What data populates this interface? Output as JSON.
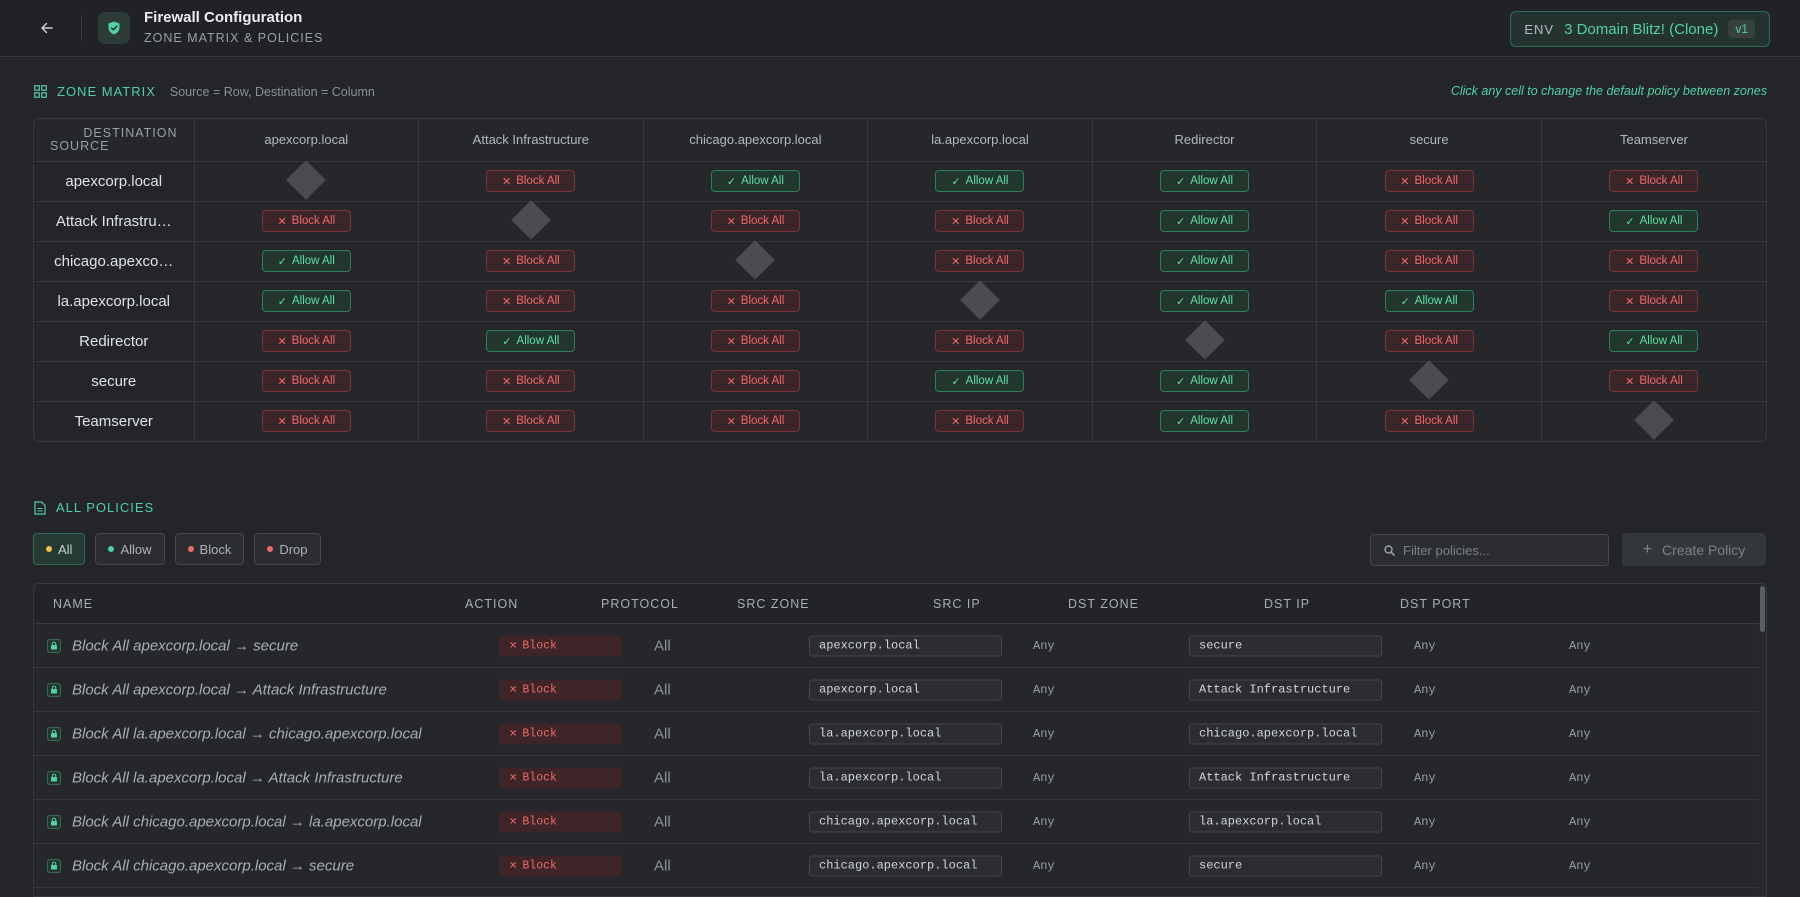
{
  "header": {
    "title": "Firewall Configuration",
    "subtitle": "ZONE MATRIX & POLICIES",
    "env_label": "ENV",
    "env_name": "3 Domain Blitz! (Clone)",
    "env_version": "v1"
  },
  "matrix_section": {
    "title": "ZONE MATRIX",
    "note": "Source = Row, Destination = Column",
    "hint": "Click any cell to change the default policy between zones",
    "corner_dest": "DESTINATION",
    "corner_src": "SOURCE",
    "columns": [
      "apexcorp.local",
      "Attack Infrastructure",
      "chicago.apexcorp.local",
      "la.apexcorp.local",
      "Redirector",
      "secure",
      "Teamserver"
    ],
    "block_label": "Block All",
    "allow_label": "Allow All",
    "rows": [
      {
        "label": "apexcorp.local",
        "cells": [
          "self",
          "block",
          "allow",
          "allow",
          "allow",
          "block",
          "block"
        ]
      },
      {
        "label": "Attack Infrastru…",
        "cells": [
          "block",
          "self",
          "block",
          "block",
          "allow",
          "block",
          "allow"
        ]
      },
      {
        "label": "chicago.apexco…",
        "cells": [
          "allow",
          "block",
          "self",
          "block",
          "allow",
          "block",
          "block"
        ]
      },
      {
        "label": "la.apexcorp.local",
        "cells": [
          "allow",
          "block",
          "block",
          "self",
          "allow",
          "allow",
          "block"
        ]
      },
      {
        "label": "Redirector",
        "cells": [
          "block",
          "allow",
          "block",
          "block",
          "self",
          "block",
          "allow"
        ]
      },
      {
        "label": "secure",
        "cells": [
          "block",
          "block",
          "block",
          "allow",
          "allow",
          "self",
          "block"
        ]
      },
      {
        "label": "Teamserver",
        "cells": [
          "block",
          "block",
          "block",
          "block",
          "allow",
          "block",
          "self"
        ]
      }
    ]
  },
  "policies_section": {
    "title": "ALL POLICIES",
    "filters": [
      {
        "label": "All",
        "dot_color": "#e8c547",
        "active": true
      },
      {
        "label": "Allow",
        "dot_color": "#4fd1a5",
        "active": false
      },
      {
        "label": "Block",
        "dot_color": "#f0686c",
        "active": false
      },
      {
        "label": "Drop",
        "dot_color": "#f0686c",
        "active": false
      }
    ],
    "search_placeholder": "Filter policies...",
    "create_label": "Create Policy",
    "columns": [
      "NAME",
      "ACTION",
      "PROTOCOL",
      "SRC ZONE",
      "SRC IP",
      "DST ZONE",
      "DST IP",
      "DST PORT"
    ],
    "rows": [
      {
        "name": "Block All apexcorp.local → secure",
        "action": "Block",
        "protocol": "All",
        "src_zone": "apexcorp.local",
        "src_ip": "Any",
        "dst_zone": "secure",
        "dst_ip": "Any",
        "dst_port": "Any"
      },
      {
        "name": "Block All apexcorp.local → Attack Infrastructure",
        "action": "Block",
        "protocol": "All",
        "src_zone": "apexcorp.local",
        "src_ip": "Any",
        "dst_zone": "Attack Infrastructure",
        "dst_ip": "Any",
        "dst_port": "Any"
      },
      {
        "name": "Block All la.apexcorp.local → chicago.apexcorp.local",
        "action": "Block",
        "protocol": "All",
        "src_zone": "la.apexcorp.local",
        "src_ip": "Any",
        "dst_zone": "chicago.apexcorp.local",
        "dst_ip": "Any",
        "dst_port": "Any"
      },
      {
        "name": "Block All la.apexcorp.local → Attack Infrastructure",
        "action": "Block",
        "protocol": "All",
        "src_zone": "la.apexcorp.local",
        "src_ip": "Any",
        "dst_zone": "Attack Infrastructure",
        "dst_ip": "Any",
        "dst_port": "Any"
      },
      {
        "name": "Block All chicago.apexcorp.local → la.apexcorp.local",
        "action": "Block",
        "protocol": "All",
        "src_zone": "chicago.apexcorp.local",
        "src_ip": "Any",
        "dst_zone": "la.apexcorp.local",
        "dst_ip": "Any",
        "dst_port": "Any"
      },
      {
        "name": "Block All chicago.apexcorp.local → secure",
        "action": "Block",
        "protocol": "All",
        "src_zone": "chicago.apexcorp.local",
        "src_ip": "Any",
        "dst_zone": "secure",
        "dst_ip": "Any",
        "dst_port": "Any"
      }
    ]
  }
}
